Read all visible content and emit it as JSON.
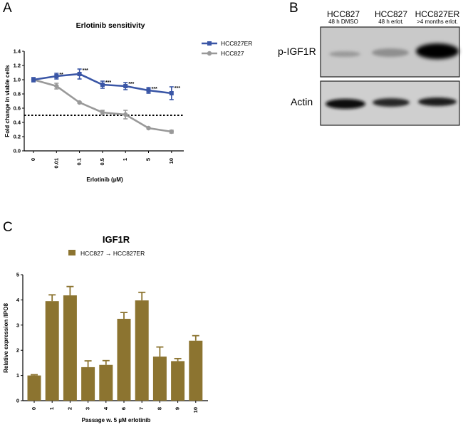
{
  "panels": {
    "a": "A",
    "b": "B",
    "c": "C"
  },
  "chart_data": [
    {
      "type": "line",
      "title": "Erlotinib sensitivity",
      "xlabel": "Erlotinib (µM)",
      "ylabel": "Fold change in viable cells",
      "categories": [
        "0",
        "0.01",
        "0.1",
        "0.5",
        "1",
        "5",
        "10"
      ],
      "ylim": [
        0,
        1.4
      ],
      "yticks": [
        "0.0",
        "0.2",
        "0.4",
        "0.6",
        "0.8",
        "1.0",
        "1.2",
        "1.4"
      ],
      "reference_line": 0.5,
      "series": [
        {
          "name": "HCC827ER",
          "color": "#3a56a6",
          "values": [
            1.0,
            1.05,
            1.08,
            0.93,
            0.91,
            0.85,
            0.81
          ],
          "errors": [
            0.03,
            0.04,
            0.07,
            0.05,
            0.05,
            0.04,
            0.09
          ],
          "significance": [
            "",
            "**",
            "***",
            "***",
            "***",
            "***",
            "***"
          ]
        },
        {
          "name": "HCC827",
          "color": "#999999",
          "values": [
            1.0,
            0.91,
            0.68,
            0.54,
            0.51,
            0.32,
            0.27
          ],
          "errors": [
            0.02,
            0.04,
            0.01,
            0.03,
            0.06,
            0.01,
            0.02
          ]
        }
      ]
    },
    {
      "type": "bar",
      "title": "IGF1R",
      "xlabel": "Passage w. 5 µM erlotinib",
      "ylabel": "Relative expression /IPO8",
      "legend": "HCC827 → HCC827ER",
      "color": "#8c7430",
      "categories": [
        "0",
        "1",
        "2",
        "3",
        "4",
        "6",
        "7",
        "8",
        "9",
        "10"
      ],
      "values": [
        1.0,
        3.95,
        4.18,
        1.33,
        1.42,
        3.25,
        3.98,
        1.75,
        1.57,
        2.38
      ],
      "errors": [
        0.03,
        0.25,
        0.35,
        0.25,
        0.17,
        0.25,
        0.32,
        0.38,
        0.1,
        0.2
      ],
      "ylim": [
        0,
        5
      ],
      "yticks": [
        "0",
        "1",
        "2",
        "3",
        "4",
        "5"
      ]
    }
  ],
  "blot": {
    "lanes": [
      {
        "name": "HCC827",
        "sub": "48 h DMSO"
      },
      {
        "name": "HCC827",
        "sub": "48 h erlot."
      },
      {
        "name": "HCC827ER",
        "sub": ">4 months erlot."
      }
    ],
    "rows": [
      "p-IGF1R",
      "Actin"
    ]
  }
}
